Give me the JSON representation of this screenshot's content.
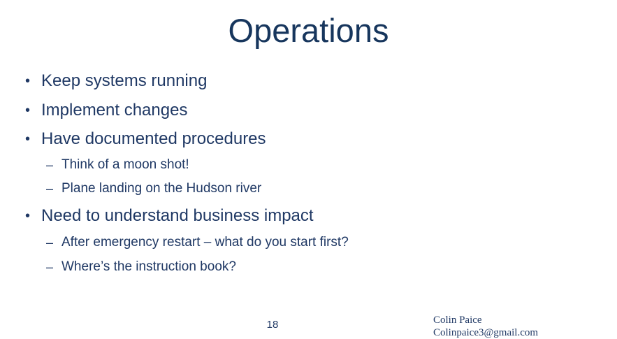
{
  "slide": {
    "title": "Operations",
    "bullets": [
      {
        "level": 1,
        "marker": "•",
        "text": "Keep systems running"
      },
      {
        "level": 1,
        "marker": "•",
        "text": "Implement changes"
      },
      {
        "level": 1,
        "marker": "•",
        "text": "Have documented procedures"
      },
      {
        "level": 2,
        "marker": "–",
        "text": "Think of a moon shot!"
      },
      {
        "level": 2,
        "marker": "–",
        "text": "Plane landing on the Hudson river"
      },
      {
        "level": 1,
        "marker": "•",
        "text": "Need to understand business impact"
      },
      {
        "level": 2,
        "marker": "–",
        "text": "After emergency restart – what do you start first?"
      },
      {
        "level": 2,
        "marker": "–",
        "text": "Where’s the instruction book?"
      }
    ],
    "page_number": "18",
    "author_name": "Colin Paice",
    "author_email": "Colinpaice3@gmail.com"
  }
}
